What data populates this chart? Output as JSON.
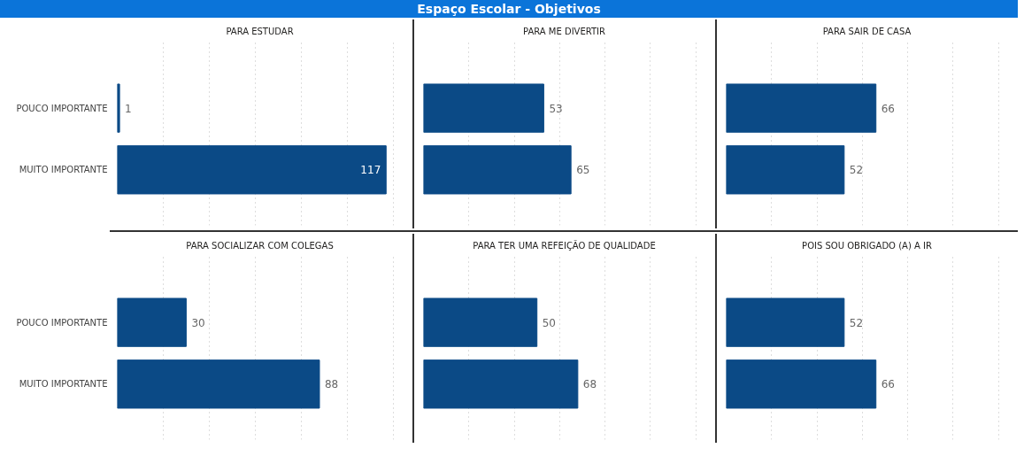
{
  "chart_data": [
    {
      "type": "other",
      "title": "Espaço Escolar - Objetivos",
      "color": "#0b74d9"
    },
    {
      "type": "bar",
      "orientation": "horizontal",
      "title": "PARA ESTUDAR",
      "categories": [
        "POUCO IMPORTANTE",
        "MUITO IMPORTANTE"
      ],
      "values": [
        1,
        117
      ],
      "color": "#0b4a86",
      "grid": "x",
      "data_labels": true
    },
    {
      "type": "bar",
      "orientation": "horizontal",
      "title": "PARA ME DIVERTIR",
      "categories": [
        null,
        null
      ],
      "values": [
        53,
        65
      ],
      "color": "#0b4a86",
      "grid": "x",
      "data_labels": true
    },
    {
      "type": "bar",
      "orientation": "horizontal",
      "title": "PARA SAIR DE CASA",
      "categories": [
        null,
        null
      ],
      "values": [
        66,
        52
      ],
      "color": "#0b4a86",
      "grid": "x",
      "data_labels": true
    },
    {
      "type": "bar",
      "orientation": "horizontal",
      "title": "PARA SOCIALIZAR COM COLEGAS",
      "categories": [
        "POUCO IMPORTANTE",
        "MUITO IMPORTANTE"
      ],
      "values": [
        30,
        88
      ],
      "color": "#0b4a86",
      "grid": "x",
      "data_labels": true
    },
    {
      "type": "bar",
      "orientation": "horizontal",
      "title": "PARA TER UMA REFEIÇÃO DE QUALIDADE",
      "categories": [
        null,
        null
      ],
      "values": [
        50,
        68
      ],
      "color": "#0b4a86",
      "grid": "x",
      "data_labels": true
    },
    {
      "type": "bar",
      "orientation": "horizontal",
      "title": "POIS SOU OBRIGADO (A) A IR",
      "categories": [
        null,
        null
      ],
      "values": [
        52,
        66
      ],
      "color": "#0b4a86",
      "grid": "x",
      "data_labels": true
    }
  ]
}
